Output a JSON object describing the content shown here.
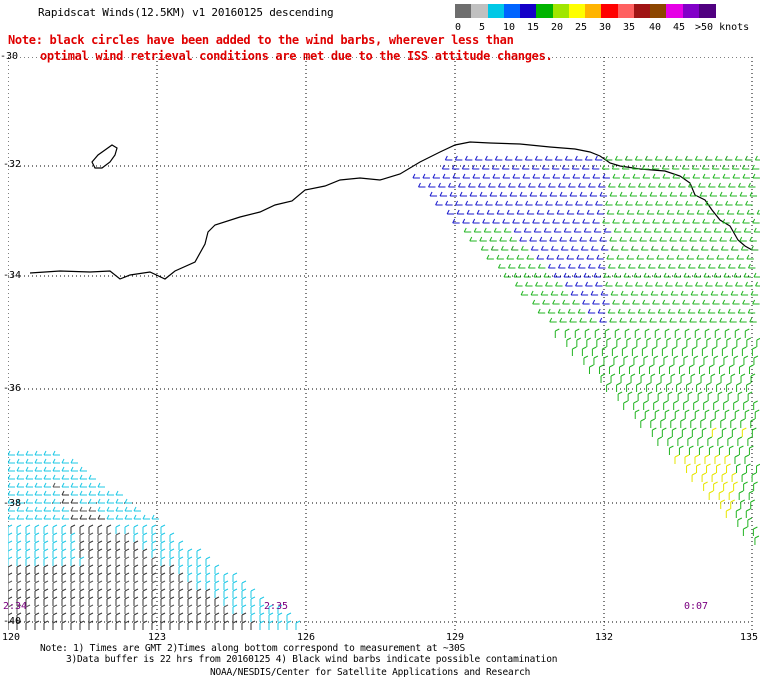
{
  "title": "Rapidscat Winds(12.5KM) v1 20160125 descending",
  "note_line1": "Note: black circles have been added to the wind barbs, wherever less than",
  "note_line2": "optimal wind retrieval conditions are met due to the ISS attitude changes.",
  "legend": {
    "colors": [
      "#6e6e6e",
      "#c0c0c0",
      "#00c8e6",
      "#0064ff",
      "#1400c8",
      "#00b400",
      "#a0e600",
      "#ffff00",
      "#ffb400",
      "#ff0000",
      "#ff6060",
      "#a01414",
      "#8c4600",
      "#e600e6",
      "#8200c8",
      "#500080"
    ],
    "labels": [
      "0",
      "5",
      "10",
      "15",
      "20",
      "25",
      "30",
      "35",
      "40",
      "45",
      ">50 knots"
    ]
  },
  "axes": {
    "x_ticks": [
      "120",
      "123",
      "126",
      "129",
      "132",
      "135"
    ],
    "y_ticks": [
      "-30",
      "-32",
      "-34",
      "-36",
      "-38",
      "-40"
    ],
    "lon_range": [
      120,
      135
    ],
    "lat_range": [
      -30,
      -40
    ]
  },
  "time_labels": [
    "2:34",
    "2:35",
    "0:07"
  ],
  "footer": {
    "line1": "Note: 1) Times are GMT 2)Times along bottom correspond to measurement at ~30S",
    "line2": "3)Data buffer is 22 hrs from 20160125 4) Black wind barbs indicate possible contamination",
    "line3": "NOAA/NESDIS/Center for Satellite Applications and Research"
  }
}
